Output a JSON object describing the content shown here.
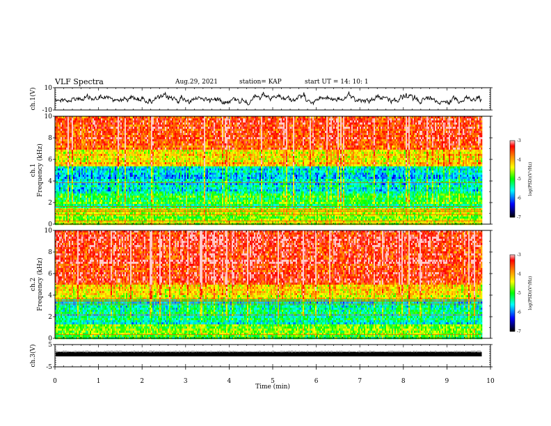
{
  "header": {
    "title": "VLF Spectra",
    "date": "Aug.29, 2021",
    "station": "station= KAP",
    "start": "start  UT  =   14: 10: 1"
  },
  "chart_data": [
    {
      "type": "line",
      "name": "ch1-waveform",
      "ylabel": "ch.1(V)",
      "ylim": [
        -10,
        10
      ],
      "yticks": [
        "10",
        "-10"
      ],
      "xlim": [
        0,
        10
      ],
      "x_end": 9.8,
      "description_values": "noisy waveform roughly between -10 and 10 V, mean near 0"
    },
    {
      "type": "heatmap",
      "name": "ch1-spectrogram",
      "ylabel": "ch.1\nFrequency (kHz)",
      "ylim": [
        0,
        10
      ],
      "yticks": [
        "0",
        "2",
        "4",
        "6",
        "8",
        "10"
      ],
      "xlim": [
        0,
        10
      ],
      "x_end": 9.8,
      "colorbar": {
        "label": "log(PSD)(V²/Hz)",
        "range": [
          -7,
          -3
        ],
        "ticks": [
          "-3",
          "-4",
          "-5",
          "-6",
          "-7"
        ]
      },
      "bands": [
        {
          "from": 0,
          "to": 1.5,
          "level": -4.6
        },
        {
          "from": 1.5,
          "to": 2.8,
          "level": -5.0
        },
        {
          "from": 2.8,
          "to": 5.4,
          "level": -5.6
        },
        {
          "from": 5.4,
          "to": 7.0,
          "level": -4.2
        },
        {
          "from": 7.0,
          "to": 10,
          "level": -3.5
        }
      ]
    },
    {
      "type": "heatmap",
      "name": "ch2-spectrogram",
      "ylabel": "ch.2\nFrequency (kHz)",
      "ylim": [
        0,
        10
      ],
      "yticks": [
        "0",
        "2",
        "4",
        "6",
        "8",
        "10"
      ],
      "xlim": [
        0,
        10
      ],
      "x_end": 9.8,
      "colorbar": {
        "label": "log(PSD)(V²/Hz)",
        "range": [
          -7,
          -3
        ],
        "ticks": [
          "-3",
          "-4",
          "-5",
          "-6",
          "-7"
        ]
      },
      "bands": [
        {
          "from": 0,
          "to": 1.2,
          "level": -4.8
        },
        {
          "from": 1.2,
          "to": 3.6,
          "level": -5.4
        },
        {
          "from": 3.6,
          "to": 5.0,
          "level": -4.4
        },
        {
          "from": 5.0,
          "to": 10,
          "level": -3.4
        }
      ]
    },
    {
      "type": "line",
      "name": "ch3-waveform",
      "ylabel": "ch.3(V)",
      "ylim": [
        -5,
        5
      ],
      "yticks": [
        "5",
        "-5"
      ],
      "xlim": [
        0,
        10
      ],
      "x_end": 9.8,
      "description_values": "dense oscillation between about -1 and 1 V"
    }
  ],
  "xaxis": {
    "label": "Time  (min)",
    "ticks": [
      "0",
      "1",
      "2",
      "3",
      "4",
      "5",
      "6",
      "7",
      "8",
      "9",
      "10"
    ]
  },
  "colors": {
    "scale": [
      "#000000",
      "#0000ff",
      "#00ffff",
      "#00ff00",
      "#ffff00",
      "#ff8000",
      "#ff0000",
      "#ffffff"
    ]
  }
}
